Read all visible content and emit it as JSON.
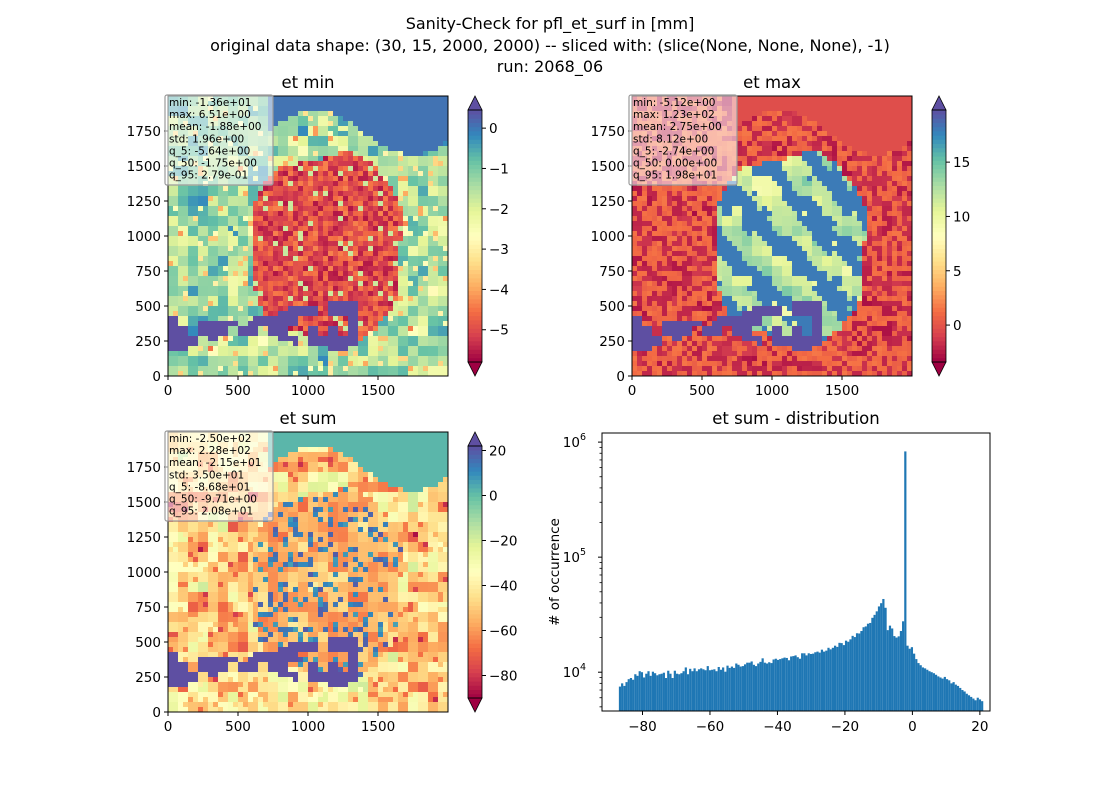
{
  "figure": {
    "title_lines": [
      "Sanity-Check for pfl_et_surf in [mm]",
      "original data shape: (30, 15, 2000, 2000) -- sliced with: (slice(None, None, None), -1)",
      "run: 2068_06"
    ]
  },
  "colors": {
    "colormap_min": "#9e0142",
    "colormap_max": "#5e4fa2",
    "hist_bar": "#1f77b4"
  },
  "chart_data": [
    {
      "type": "heatmap",
      "title": "et min",
      "colormap": "Spectral",
      "xlim": [
        0,
        2000
      ],
      "ylim": [
        0,
        2000
      ],
      "x_ticks": [
        "0",
        "500",
        "1000",
        "1500"
      ],
      "y_ticks": [
        "0",
        "250",
        "500",
        "750",
        "1000",
        "1250",
        "1500",
        "1750"
      ],
      "color_range": [
        -5.8,
        0.45
      ],
      "colorbar_ticks": [
        0,
        -1,
        -2,
        -3,
        -4,
        -5
      ],
      "colorbar_tick_labels": [
        "0",
        "−1",
        "−2",
        "−3",
        "−4",
        "−5"
      ],
      "stats": [
        "min: -1.36e+01",
        "max: 6.51e+00",
        "mean: -1.88e+00",
        "std: 1.96e+00",
        "q_5: -5.64e+00",
        "q_50: -1.75e+00",
        "q_95: 2.79e-01"
      ]
    },
    {
      "type": "heatmap",
      "title": "et max",
      "colormap": "Spectral",
      "xlim": [
        0,
        2000
      ],
      "ylim": [
        0,
        2000
      ],
      "x_ticks": [
        "0",
        "500",
        "1000",
        "1500"
      ],
      "y_ticks": [
        "0",
        "250",
        "500",
        "750",
        "1000",
        "1250",
        "1500",
        "1750"
      ],
      "color_range": [
        -3.4,
        19.8
      ],
      "colorbar_ticks": [
        15,
        10,
        5,
        0
      ],
      "colorbar_tick_labels": [
        "15",
        "10",
        "5",
        "0"
      ],
      "stats": [
        "min: -5.12e+00",
        "max: 1.23e+02",
        "mean: 2.75e+00",
        "std: 8.12e+00",
        "q_5: -2.74e+00",
        "q_50: 0.00e+00",
        "q_95: 1.98e+01"
      ]
    },
    {
      "type": "heatmap",
      "title": "et sum",
      "colormap": "Spectral",
      "xlim": [
        0,
        2000
      ],
      "ylim": [
        0,
        2000
      ],
      "x_ticks": [
        "0",
        "500",
        "1000",
        "1500"
      ],
      "y_ticks": [
        "0",
        "250",
        "500",
        "750",
        "1000",
        "1250",
        "1500",
        "1750"
      ],
      "color_range": [
        -90,
        22
      ],
      "colorbar_ticks": [
        20,
        0,
        -20,
        -40,
        -60,
        -80
      ],
      "colorbar_tick_labels": [
        "20",
        "0",
        "−20",
        "−40",
        "−60",
        "−80"
      ],
      "stats": [
        "min: -2.50e+02",
        "max: 2.28e+02",
        "mean: -2.15e+01",
        "std: 3.50e+01",
        "q_5: -8.68e+01",
        "q_50: -9.71e+00",
        "q_95: 2.08e+01"
      ]
    },
    {
      "type": "bar",
      "title": "et sum - distribution",
      "ylabel": "# of occurrence",
      "xlim": [
        -92,
        23
      ],
      "ylim": [
        4600,
        1200000
      ],
      "yscale": "log",
      "x_ticks": [
        -80,
        -60,
        -40,
        -20,
        0,
        20
      ],
      "x_tick_labels": [
        "−80",
        "−60",
        "−40",
        "−20",
        "0",
        "20"
      ],
      "y_ticks": [
        10000,
        100000,
        1000000
      ],
      "bin_range": [
        -87,
        21
      ],
      "bin_values": [
        7500,
        8000,
        7600,
        8200,
        8700,
        8900,
        8600,
        9600,
        9300,
        10200,
        10000,
        9000,
        9700,
        10200,
        9300,
        10100,
        9800,
        9400,
        9600,
        9700,
        9900,
        8900,
        10300,
        9700,
        8900,
        10300,
        9700,
        9600,
        9800,
        10200,
        11000,
        9600,
        10700,
        10200,
        10800,
        10200,
        10600,
        10800,
        10600,
        10400,
        11300,
        10400,
        10500,
        10600,
        10200,
        11100,
        10500,
        11000,
        10100,
        11400,
        10900,
        11200,
        10900,
        11900,
        11600,
        11200,
        11300,
        11700,
        12100,
        12100,
        12400,
        11600,
        11300,
        11900,
        12300,
        13200,
        12100,
        11900,
        12200,
        12000,
        12900,
        13100,
        12800,
        13000,
        13200,
        13400,
        13300,
        12700,
        13700,
        13800,
        14000,
        13500,
        13100,
        14600,
        14600,
        14000,
        14600,
        14400,
        14500,
        14900,
        15100,
        14800,
        15700,
        15100,
        15400,
        16300,
        15800,
        16300,
        17000,
        16600,
        18000,
        17900,
        17200,
        18800,
        18400,
        19300,
        20700,
        20200,
        21800,
        21700,
        22800,
        24600,
        25000,
        26400,
        26800,
        29700,
        31500,
        33800,
        37300,
        39800,
        43300,
        36300,
        23200,
        25400,
        24000,
        20600,
        20000,
        20500,
        22800,
        27700,
        830000,
        17000,
        16000,
        16500,
        14500,
        13000,
        12000,
        11500,
        11000,
        10800,
        10500,
        10200,
        10000,
        9800,
        9500,
        9200,
        9000,
        8800,
        9100,
        8700,
        8500,
        8000,
        8200,
        7800,
        7600,
        7300,
        7000,
        6800,
        6500,
        6300,
        6100,
        5900,
        5700,
        6000,
        5800,
        5600
      ]
    }
  ]
}
